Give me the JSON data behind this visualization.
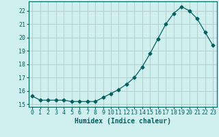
{
  "x": [
    0,
    1,
    2,
    3,
    4,
    5,
    6,
    7,
    8,
    9,
    10,
    11,
    12,
    13,
    14,
    15,
    16,
    17,
    18,
    19,
    20,
    21,
    22,
    23
  ],
  "y": [
    15.6,
    15.3,
    15.3,
    15.3,
    15.3,
    15.2,
    15.2,
    15.2,
    15.2,
    15.5,
    15.8,
    16.1,
    16.5,
    17.0,
    17.8,
    18.8,
    19.9,
    21.0,
    21.8,
    22.3,
    22.0,
    21.4,
    20.4,
    19.4
  ],
  "line_color": "#006060",
  "marker": "D",
  "marker_size": 2.5,
  "bg_color": "#d0f0f0",
  "grid_color": "#b0c8c8",
  "tick_color": "#006060",
  "xlabel": "Humidex (Indice chaleur)",
  "ylabel": "",
  "ylim": [
    14.8,
    22.7
  ],
  "xlim": [
    -0.5,
    23.5
  ],
  "yticks": [
    15,
    16,
    17,
    18,
    19,
    20,
    21,
    22
  ],
  "xticks": [
    0,
    1,
    2,
    3,
    4,
    5,
    6,
    7,
    8,
    9,
    10,
    11,
    12,
    13,
    14,
    15,
    16,
    17,
    18,
    19,
    20,
    21,
    22,
    23
  ],
  "font_color": "#006060",
  "font_size": 6,
  "xlabel_fontsize": 7
}
